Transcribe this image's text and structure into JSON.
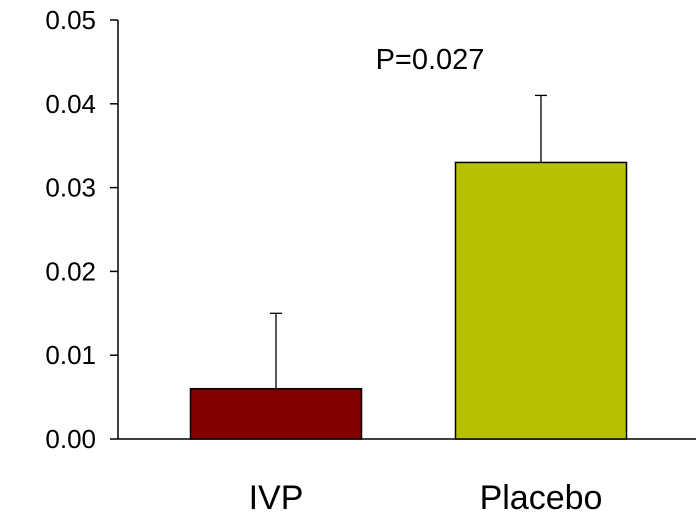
{
  "chart_data": {
    "type": "bar",
    "categories": [
      "IVP",
      "Placebo"
    ],
    "values": [
      0.006,
      0.033
    ],
    "error_upper": [
      0.015,
      0.041
    ],
    "ylim": [
      0,
      0.05
    ],
    "yticks": [
      "0.00",
      "0.01",
      "0.02",
      "0.03",
      "0.04",
      "0.05"
    ],
    "bar_colors": [
      "#800000",
      "#b8c000"
    ],
    "annotation": "P=0.027",
    "grid": false,
    "legend": "none",
    "title": "",
    "xlabel": "",
    "ylabel": ""
  }
}
